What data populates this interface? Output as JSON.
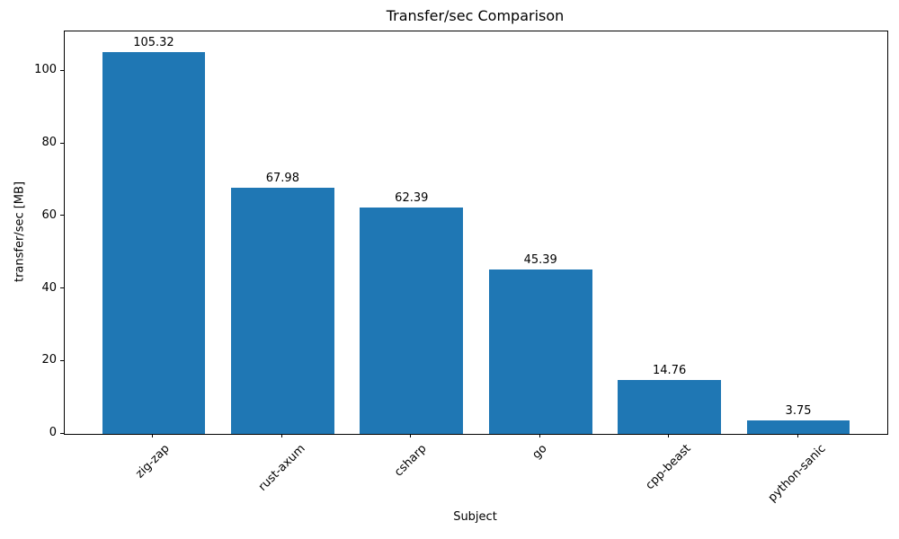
{
  "chart_data": {
    "type": "bar",
    "title": "Transfer/sec Comparison",
    "xlabel": "Subject",
    "ylabel": "transfer/sec [MB]",
    "categories": [
      "zig-zap",
      "rust-axum",
      "csharp",
      "go",
      "cpp-beast",
      "python-sanic"
    ],
    "values": [
      105.32,
      67.98,
      62.39,
      45.39,
      14.76,
      3.75
    ],
    "value_labels": [
      "105.32",
      "67.98",
      "62.39",
      "45.39",
      "14.76",
      "3.75"
    ],
    "yticks": [
      0,
      20,
      40,
      60,
      80,
      100
    ],
    "ytick_labels": [
      "0",
      "20",
      "40",
      "60",
      "80",
      "100"
    ],
    "ylim": [
      0,
      111
    ],
    "xlim": [
      -0.69,
      5.69
    ],
    "bar_width_fraction": 0.8,
    "xtick_label_rotation_deg": 45,
    "grid": false,
    "legend": "none",
    "colors": {
      "bar": "#1f77b4",
      "text": "#000000",
      "spine": "#000000",
      "background": "#ffffff"
    }
  }
}
